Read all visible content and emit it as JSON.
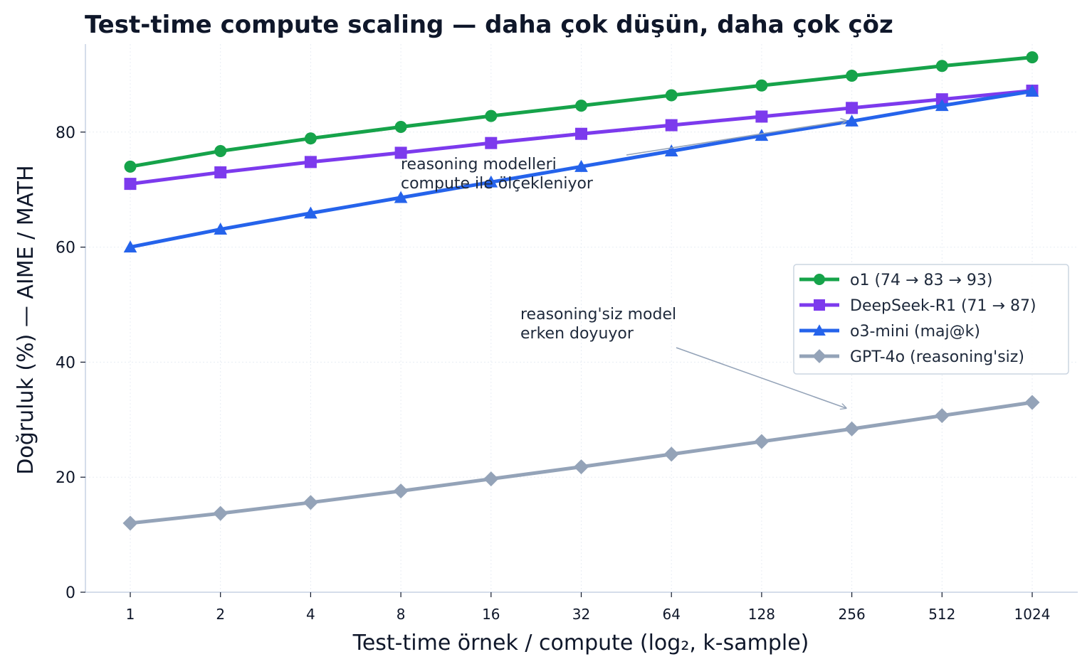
{
  "chart_data": {
    "type": "line",
    "title": "Test-time compute scaling — daha çok düşün, daha çok çöz",
    "xlabel": "Test-time örnek / compute (log₂, k-sample)",
    "ylabel": "Doğruluk (%) — AIME / MATH",
    "x_scale": "log2",
    "categories": [
      "1",
      "2",
      "4",
      "8",
      "16",
      "32",
      "64",
      "128",
      "256",
      "512",
      "1024"
    ],
    "x": [
      1,
      2,
      4,
      8,
      16,
      32,
      64,
      128,
      256,
      512,
      1024
    ],
    "ylim": [
      0,
      95
    ],
    "y_ticks": [
      "0",
      "20",
      "40",
      "60",
      "80"
    ],
    "y_tick_values": [
      0,
      20,
      40,
      60,
      80
    ],
    "grid": true,
    "legend_position": "center-right",
    "series": [
      {
        "name": "o1 (74 → 83 → 93)",
        "color": "#16a34a",
        "marker": "circle",
        "values": [
          74,
          76.7,
          78.9,
          80.9,
          82.8,
          84.6,
          86.4,
          88.1,
          89.8,
          91.5,
          93
        ]
      },
      {
        "name": "DeepSeek-R1 (71 → 87)",
        "color": "#7c3aed",
        "marker": "square",
        "values": [
          71,
          73,
          74.8,
          76.4,
          78.1,
          79.7,
          81.2,
          82.7,
          84.2,
          85.7,
          87.2
        ]
      },
      {
        "name": "o3-mini (maj@k)",
        "color": "#2563eb",
        "marker": "triangle",
        "values": [
          60,
          63.1,
          65.9,
          68.6,
          71.3,
          74,
          76.7,
          79.4,
          81.9,
          84.6,
          87.1
        ]
      },
      {
        "name": "GPT-4o (reasoning'siz)",
        "color": "#94a3b8",
        "marker": "diamond",
        "values": [
          12,
          13.7,
          15.6,
          17.6,
          19.7,
          21.8,
          24,
          26.2,
          28.4,
          30.7,
          33
        ]
      }
    ],
    "annotations": [
      {
        "lines": [
          "reasoning modelleri",
          "compute ile ölçekleniyor"
        ],
        "arrow_to": {
          "x": 256,
          "y": 82
        }
      },
      {
        "lines": [
          "reasoning'siz model",
          "erken doyuyor"
        ],
        "arrow_to": {
          "x": 256,
          "y": 32
        }
      }
    ]
  }
}
